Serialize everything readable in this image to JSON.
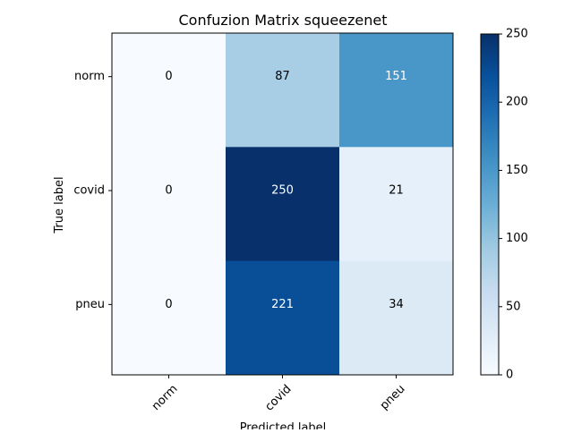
{
  "chart_data": {
    "type": "heatmap",
    "title": "Confuzion Matrix squeezenet",
    "xlabel": "Predicted label",
    "ylabel": "True label",
    "x_categories": [
      "norm",
      "covid",
      "pneu"
    ],
    "y_categories": [
      "norm",
      "covid",
      "pneu"
    ],
    "values": [
      [
        0,
        87,
        151
      ],
      [
        0,
        250,
        21
      ],
      [
        0,
        221,
        34
      ]
    ],
    "colormap": "Blues",
    "color_range": [
      0,
      250
    ],
    "colorbar_ticks": [
      "0",
      "50",
      "100",
      "150",
      "200",
      "250"
    ],
    "colors": {
      "low": "#f7fbff",
      "high": "#08306b",
      "text_dark": "#000000",
      "text_light": "#ffffff"
    }
  }
}
